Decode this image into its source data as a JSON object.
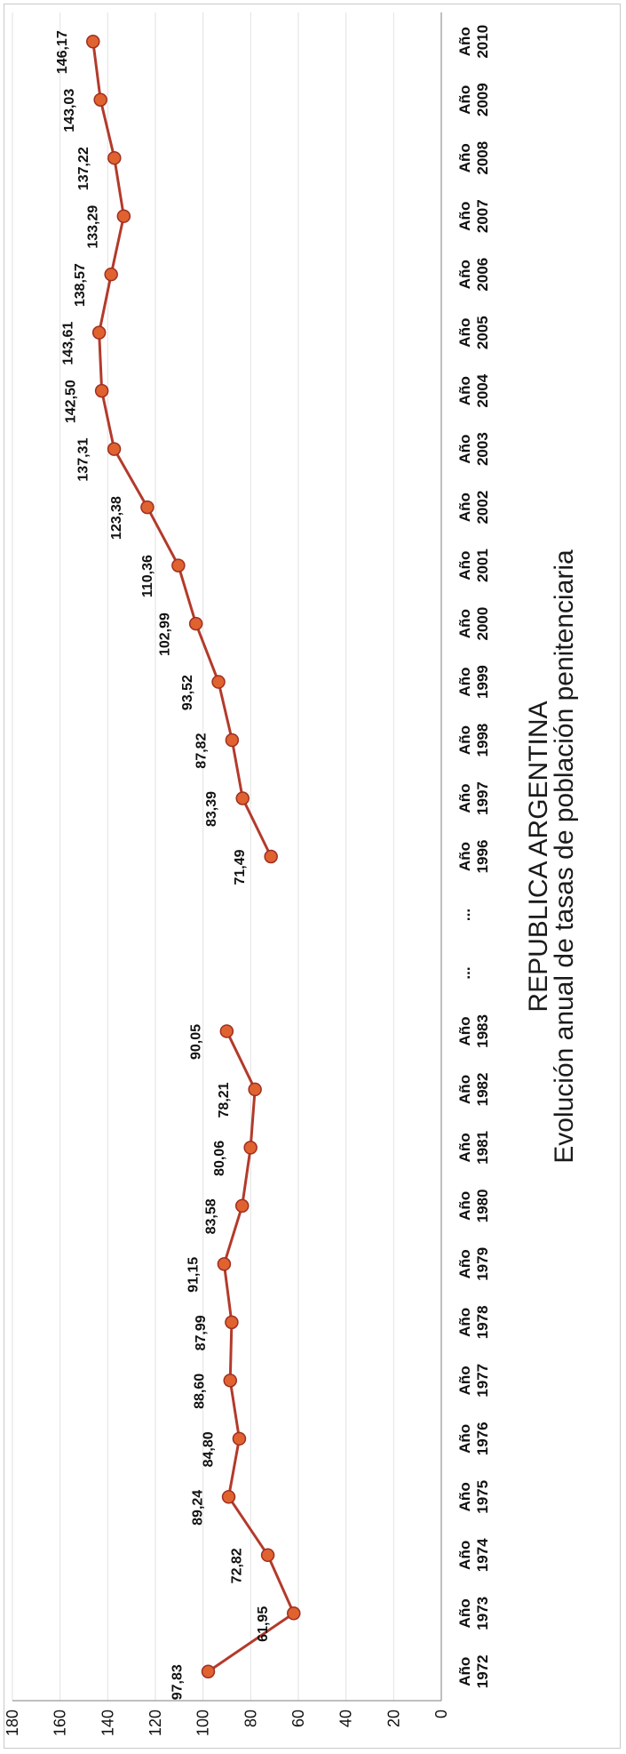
{
  "chart_data": {
    "type": "line",
    "title": "Evolución anual de tasas de población penitenciaria",
    "subtitle": "REPUBLICA ARGENTINA",
    "xlabel": "",
    "ylabel": "",
    "ylim": [
      0,
      180
    ],
    "yticks": [
      0,
      20,
      40,
      60,
      80,
      100,
      120,
      140,
      160,
      180
    ],
    "grid": true,
    "legend": "none",
    "orientation": "rotated 90° counter-clockwise",
    "line_color": "#b33a2b",
    "marker_color": "#e0622f",
    "categories": [
      {
        "top": "Año",
        "bottom": "1972"
      },
      {
        "top": "Año",
        "bottom": "1973"
      },
      {
        "top": "Año",
        "bottom": "1974"
      },
      {
        "top": "Año",
        "bottom": "1975"
      },
      {
        "top": "Año",
        "bottom": "1976"
      },
      {
        "top": "Año",
        "bottom": "1977"
      },
      {
        "top": "Año",
        "bottom": "1978"
      },
      {
        "top": "Año",
        "bottom": "1979"
      },
      {
        "top": "Año",
        "bottom": "1980"
      },
      {
        "top": "Año",
        "bottom": "1981"
      },
      {
        "top": "Año",
        "bottom": "1982"
      },
      {
        "top": "Año",
        "bottom": "1983"
      },
      {
        "top": "...",
        "bottom": ""
      },
      {
        "top": "...",
        "bottom": ""
      },
      {
        "top": "Año",
        "bottom": "1996"
      },
      {
        "top": "Año",
        "bottom": "1997"
      },
      {
        "top": "Año",
        "bottom": "1998"
      },
      {
        "top": "Año",
        "bottom": "1999"
      },
      {
        "top": "Año",
        "bottom": "2000"
      },
      {
        "top": "Año",
        "bottom": "2001"
      },
      {
        "top": "Año",
        "bottom": "2002"
      },
      {
        "top": "Año",
        "bottom": "2003"
      },
      {
        "top": "Año",
        "bottom": "2004"
      },
      {
        "top": "Año",
        "bottom": "2005"
      },
      {
        "top": "Año",
        "bottom": "2006"
      },
      {
        "top": "Año",
        "bottom": "2007"
      },
      {
        "top": "Año",
        "bottom": "2008"
      },
      {
        "top": "Año",
        "bottom": "2009"
      },
      {
        "top": "Año",
        "bottom": "2010"
      }
    ],
    "values": [
      97.83,
      61.95,
      72.82,
      89.24,
      84.8,
      88.6,
      87.99,
      91.15,
      83.58,
      80.06,
      78.21,
      90.05,
      null,
      null,
      71.49,
      83.39,
      87.82,
      93.52,
      102.99,
      110.36,
      123.38,
      137.31,
      142.5,
      143.61,
      138.57,
      133.29,
      137.22,
      143.03,
      146.17
    ],
    "labels": [
      "97,83",
      "61,95",
      "72,82",
      "89,24",
      "84,80",
      "88,60",
      "87,99",
      "91,15",
      "83,58",
      "80,06",
      "78,21",
      "90,05",
      "",
      "",
      "71,49",
      "83,39",
      "87,82",
      "93,52",
      "102,99",
      "110,36",
      "123,38",
      "137,31",
      "142,50",
      "143,61",
      "138,57",
      "133,29",
      "137,22",
      "143,03",
      "146,17"
    ]
  }
}
